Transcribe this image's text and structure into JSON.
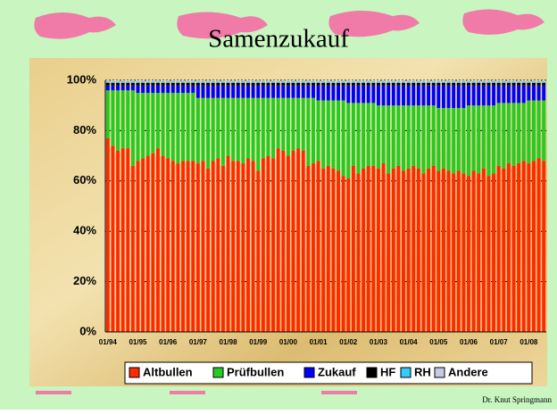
{
  "chart_data": {
    "type": "stacked_bar",
    "title": "Samenzukauf",
    "footer": "Dr. Knut Springmann",
    "categories": [
      "01/94",
      null,
      null,
      null,
      null,
      null,
      "01/95",
      null,
      null,
      null,
      null,
      null,
      "01/96",
      null,
      null,
      null,
      null,
      null,
      "01/97",
      null,
      null,
      null,
      null,
      null,
      "01/98",
      null,
      null,
      null,
      null,
      null,
      "01/99",
      null,
      null,
      null,
      null,
      null,
      "01/00",
      null,
      null,
      null,
      null,
      null,
      "01/01",
      null,
      null,
      null,
      null,
      null,
      "01/02",
      null,
      null,
      null,
      null,
      null,
      "01/03",
      null,
      null,
      null,
      null,
      null,
      "01/04",
      null,
      null,
      null,
      null,
      null,
      "01/05",
      null,
      null,
      null,
      null,
      null,
      "01/06",
      null,
      null,
      null,
      null,
      null,
      "01/07",
      null,
      null,
      null,
      null,
      null,
      "01/08",
      null,
      null,
      null
    ],
    "series": [
      {
        "name": "Altbullen",
        "color": "#ff2a00",
        "values": [
          77,
          74,
          72,
          73,
          73,
          66,
          68,
          69,
          70,
          71,
          73,
          70,
          69,
          68,
          67,
          68,
          68,
          68,
          67,
          68,
          65,
          68,
          69,
          66,
          70,
          68,
          68,
          67,
          69,
          68,
          64,
          69,
          70,
          69,
          73,
          72,
          70,
          72,
          73,
          72,
          66,
          67,
          68,
          65,
          66,
          65,
          64,
          62,
          61,
          66,
          63,
          65,
          66,
          66,
          65,
          67,
          63,
          65,
          66,
          64,
          65,
          66,
          65,
          63,
          65,
          66,
          64,
          65,
          64,
          63,
          64,
          63,
          62,
          64,
          63,
          65,
          62,
          63,
          66,
          65,
          67,
          66,
          67,
          68,
          67,
          68,
          69,
          68
        ]
      },
      {
        "name": "Prüfbullen",
        "color": "#22cc22",
        "values": [
          19,
          22,
          24,
          23,
          23,
          30,
          27,
          26,
          25,
          24,
          22,
          25,
          26,
          27,
          28,
          27,
          27,
          27,
          26,
          25,
          28,
          25,
          24,
          27,
          23,
          25,
          25,
          26,
          24,
          25,
          29,
          24,
          23,
          24,
          20,
          21,
          23,
          21,
          20,
          21,
          27,
          26,
          24,
          27,
          26,
          27,
          28,
          30,
          30,
          25,
          28,
          26,
          25,
          25,
          25,
          23,
          27,
          25,
          24,
          26,
          25,
          24,
          25,
          27,
          25,
          24,
          25,
          24,
          25,
          26,
          25,
          26,
          28,
          26,
          27,
          25,
          28,
          27,
          25,
          26,
          24,
          25,
          24,
          23,
          25,
          24,
          23,
          24
        ]
      },
      {
        "name": "Zukauf",
        "color": "#0000ff",
        "values": [
          2,
          2,
          2,
          2,
          2,
          2,
          3,
          3,
          3,
          3,
          3,
          3,
          3,
          3,
          3,
          3,
          3,
          3,
          5,
          5,
          5,
          5,
          5,
          5,
          5,
          5,
          5,
          5,
          5,
          5,
          5,
          5,
          5,
          5,
          5,
          5,
          5,
          5,
          5,
          5,
          5,
          5,
          6,
          6,
          6,
          6,
          6,
          6,
          7,
          7,
          7,
          7,
          7,
          7,
          8,
          8,
          8,
          8,
          8,
          8,
          8,
          8,
          8,
          8,
          8,
          8,
          9,
          9,
          9,
          9,
          9,
          9,
          8,
          8,
          8,
          8,
          8,
          8,
          7,
          7,
          7,
          7,
          7,
          7,
          6,
          6,
          6,
          6
        ]
      },
      {
        "name": "HF",
        "color": "#000000",
        "values": [
          1,
          1,
          1,
          1,
          1,
          1,
          1,
          1,
          1,
          1,
          1,
          1,
          1,
          1,
          1,
          1,
          1,
          1,
          1,
          1,
          1,
          1,
          1,
          1,
          1,
          1,
          1,
          1,
          1,
          1,
          1,
          1,
          1,
          1,
          1,
          1,
          1,
          1,
          1,
          1,
          1,
          1,
          1,
          1,
          1,
          1,
          1,
          1,
          1,
          1,
          1,
          1,
          1,
          1,
          1,
          1,
          1,
          1,
          1,
          1,
          1,
          1,
          1,
          1,
          1,
          1,
          1,
          1,
          1,
          1,
          1,
          1,
          1,
          1,
          1,
          1,
          1,
          1,
          1,
          1,
          1,
          1,
          1,
          1,
          1,
          1,
          1,
          1
        ]
      },
      {
        "name": "RH",
        "color": "#33ccff",
        "values": [
          0.5,
          0.5,
          0.5,
          0.5,
          0.5,
          0.5,
          0.5,
          0.5,
          0.5,
          0.5,
          0.5,
          0.5,
          0.5,
          0.5,
          0.5,
          0.5,
          0.5,
          0.5,
          0.5,
          0.5,
          0.5,
          0.5,
          0.5,
          0.5,
          0.5,
          0.5,
          0.5,
          0.5,
          0.5,
          0.5,
          0.5,
          0.5,
          0.5,
          0.5,
          0.5,
          0.5,
          0.5,
          0.5,
          0.5,
          0.5,
          0.5,
          0.5,
          0.5,
          0.5,
          0.5,
          0.5,
          0.5,
          0.5,
          0.5,
          0.5,
          0.5,
          0.5,
          0.5,
          0.5,
          0.5,
          0.5,
          0.5,
          0.5,
          0.5,
          0.5,
          0.5,
          0.5,
          0.5,
          0.5,
          0.5,
          0.5,
          0.5,
          0.5,
          0.5,
          0.5,
          0.5,
          0.5,
          0.5,
          0.5,
          0.5,
          0.5,
          0.5,
          0.5,
          0.5,
          0.5,
          0.5,
          0.5,
          0.5,
          0.5,
          0.5,
          0.5,
          0.5,
          0.5
        ]
      },
      {
        "name": "Andere",
        "color": "#c8c8e8",
        "values": [
          0.5,
          0.5,
          0.5,
          0.5,
          0.5,
          0.5,
          0.5,
          0.5,
          0.5,
          0.5,
          0.5,
          0.5,
          0.5,
          0.5,
          0.5,
          0.5,
          0.5,
          0.5,
          0.5,
          0.5,
          0.5,
          0.5,
          0.5,
          0.5,
          0.5,
          0.5,
          0.5,
          0.5,
          0.5,
          0.5,
          0.5,
          0.5,
          0.5,
          0.5,
          0.5,
          0.5,
          0.5,
          0.5,
          0.5,
          0.5,
          0.5,
          0.5,
          0.5,
          0.5,
          0.5,
          0.5,
          0.5,
          0.5,
          0.5,
          0.5,
          0.5,
          0.5,
          0.5,
          0.5,
          0.5,
          0.5,
          0.5,
          0.5,
          0.5,
          0.5,
          0.5,
          0.5,
          0.5,
          0.5,
          0.5,
          0.5,
          0.5,
          0.5,
          0.5,
          0.5,
          0.5,
          0.5,
          0.5,
          0.5,
          0.5,
          0.5,
          0.5,
          0.5,
          0.5,
          0.5,
          0.5,
          0.5,
          0.5,
          0.5,
          0.5,
          0.5,
          0.5,
          0.5
        ]
      }
    ],
    "ylim": [
      0,
      100
    ],
    "yticks": [
      {
        "value": 0,
        "label": "0%"
      },
      {
        "value": 20,
        "label": "20%"
      },
      {
        "value": 40,
        "label": "40%"
      },
      {
        "value": 60,
        "label": "60%"
      },
      {
        "value": 80,
        "label": "80%"
      },
      {
        "value": 100,
        "label": "100%"
      }
    ],
    "grid": true,
    "legend": "bottom"
  }
}
